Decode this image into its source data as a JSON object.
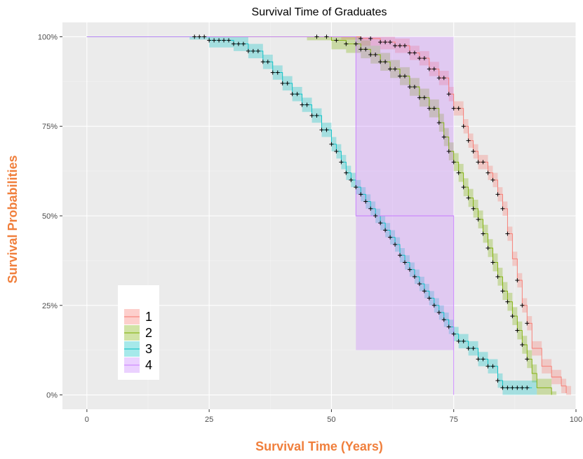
{
  "chart_data": {
    "type": "line",
    "subtype": "kaplan-meier survival curves with confidence bands and censor marks",
    "title": "Survival Time of Graduates",
    "xlabel": "Survival Time (Years)",
    "ylabel": "Survival Probabilities",
    "xlim": [
      -5,
      100
    ],
    "ylim": [
      -0.04,
      1.04
    ],
    "x_ticks": [
      0,
      25,
      50,
      75,
      100
    ],
    "x_tick_labels": [
      "0",
      "25",
      "50",
      "75",
      "100"
    ],
    "y_ticks": [
      0,
      0.25,
      0.5,
      0.75,
      1.0
    ],
    "y_tick_labels": [
      "0%",
      "25%",
      "50%",
      "75%",
      "100%"
    ],
    "grid": true,
    "legend_position": "bottom-left inside",
    "series": [
      {
        "name": "1",
        "color": "#F8766D",
        "band_color": "#F8766D",
        "points": [
          [
            0,
            1
          ],
          [
            52,
            1
          ],
          [
            56,
            0.995
          ],
          [
            60,
            0.985
          ],
          [
            63,
            0.975
          ],
          [
            66,
            0.955
          ],
          [
            68,
            0.94
          ],
          [
            70,
            0.91
          ],
          [
            72,
            0.885
          ],
          [
            74,
            0.84
          ],
          [
            75,
            0.8
          ],
          [
            77,
            0.75
          ],
          [
            78,
            0.71
          ],
          [
            79,
            0.68
          ],
          [
            80,
            0.65
          ],
          [
            82,
            0.62
          ],
          [
            83,
            0.6
          ],
          [
            84,
            0.56
          ],
          [
            85,
            0.52
          ],
          [
            86,
            0.45
          ],
          [
            87,
            0.38
          ],
          [
            88,
            0.32
          ],
          [
            89,
            0.25
          ],
          [
            90,
            0.2
          ],
          [
            91,
            0.13
          ],
          [
            93,
            0.08
          ],
          [
            95,
            0.05
          ],
          [
            97,
            0.025
          ],
          [
            98,
            0.005
          ]
        ],
        "ci_width": 0.02,
        "censor_x": [
          56,
          58,
          60,
          61,
          62,
          63,
          64,
          65,
          66,
          67,
          68,
          69,
          70,
          71,
          72,
          73,
          74,
          75,
          76,
          77,
          78,
          79,
          80,
          81,
          82,
          83,
          84,
          85,
          86,
          88,
          89,
          90
        ]
      },
      {
        "name": "2",
        "color": "#7CAE00",
        "band_color": "#7CAE00",
        "points": [
          [
            0,
            1
          ],
          [
            45,
            1
          ],
          [
            50,
            0.99
          ],
          [
            53,
            0.98
          ],
          [
            56,
            0.965
          ],
          [
            58,
            0.95
          ],
          [
            60,
            0.93
          ],
          [
            62,
            0.91
          ],
          [
            64,
            0.89
          ],
          [
            66,
            0.86
          ],
          [
            68,
            0.83
          ],
          [
            70,
            0.8
          ],
          [
            72,
            0.76
          ],
          [
            73,
            0.72
          ],
          [
            74,
            0.68
          ],
          [
            75,
            0.65
          ],
          [
            76,
            0.62
          ],
          [
            77,
            0.58
          ],
          [
            78,
            0.55
          ],
          [
            79,
            0.52
          ],
          [
            80,
            0.49
          ],
          [
            81,
            0.45
          ],
          [
            82,
            0.41
          ],
          [
            83,
            0.37
          ],
          [
            84,
            0.33
          ],
          [
            85,
            0.29
          ],
          [
            86,
            0.26
          ],
          [
            87,
            0.22
          ],
          [
            88,
            0.18
          ],
          [
            89,
            0.14
          ],
          [
            90,
            0.1
          ],
          [
            91,
            0.06
          ],
          [
            92,
            0.02
          ],
          [
            95,
            0
          ]
        ],
        "ci_width": 0.025,
        "censor_x": [
          47,
          49,
          51,
          53,
          55,
          56,
          57,
          58,
          59,
          60,
          61,
          62,
          63,
          64,
          65,
          66,
          67,
          68,
          69,
          70,
          71,
          72,
          73,
          74,
          75,
          76,
          77,
          78,
          79,
          80,
          81,
          82,
          83,
          84,
          85,
          86,
          87,
          88,
          89,
          90
        ]
      },
      {
        "name": "3",
        "color": "#00BFC4",
        "band_color": "#00BFC4",
        "points": [
          [
            0,
            1
          ],
          [
            21,
            1
          ],
          [
            25,
            0.99
          ],
          [
            30,
            0.98
          ],
          [
            33,
            0.96
          ],
          [
            36,
            0.93
          ],
          [
            38,
            0.9
          ],
          [
            40,
            0.87
          ],
          [
            42,
            0.84
          ],
          [
            44,
            0.81
          ],
          [
            46,
            0.78
          ],
          [
            48,
            0.74
          ],
          [
            50,
            0.7
          ],
          [
            51,
            0.68
          ],
          [
            52,
            0.65
          ],
          [
            53,
            0.62
          ],
          [
            54,
            0.6
          ],
          [
            55,
            0.58
          ],
          [
            56,
            0.56
          ],
          [
            57,
            0.54
          ],
          [
            58,
            0.52
          ],
          [
            59,
            0.5
          ],
          [
            60,
            0.48
          ],
          [
            61,
            0.46
          ],
          [
            62,
            0.44
          ],
          [
            63,
            0.42
          ],
          [
            64,
            0.39
          ],
          [
            65,
            0.37
          ],
          [
            66,
            0.35
          ],
          [
            67,
            0.33
          ],
          [
            68,
            0.31
          ],
          [
            69,
            0.29
          ],
          [
            70,
            0.27
          ],
          [
            71,
            0.25
          ],
          [
            72,
            0.23
          ],
          [
            73,
            0.21
          ],
          [
            74,
            0.19
          ],
          [
            75,
            0.17
          ],
          [
            76,
            0.15
          ],
          [
            78,
            0.13
          ],
          [
            80,
            0.1
          ],
          [
            82,
            0.08
          ],
          [
            84,
            0.04
          ],
          [
            85,
            0.02
          ],
          [
            91,
            0.02
          ]
        ],
        "ci_width": 0.02,
        "censor_x": [
          22,
          23,
          24,
          25,
          26,
          27,
          28,
          29,
          30,
          31,
          32,
          33,
          34,
          35,
          36,
          37,
          38,
          39,
          40,
          41,
          42,
          43,
          44,
          45,
          46,
          47,
          48,
          49,
          50,
          51,
          52,
          53,
          54,
          55,
          56,
          57,
          58,
          59,
          60,
          61,
          62,
          63,
          64,
          65,
          66,
          67,
          68,
          69,
          70,
          71,
          72,
          73,
          74,
          75,
          76,
          77,
          78,
          79,
          80,
          81,
          82,
          83,
          84,
          85,
          86,
          87,
          88,
          89,
          90
        ]
      },
      {
        "name": "4",
        "color": "#C77CFF",
        "band_color": "#C77CFF",
        "points": [
          [
            0,
            1
          ],
          [
            55,
            1
          ],
          [
            55,
            0.5
          ],
          [
            75,
            0.5
          ],
          [
            75,
            0
          ]
        ],
        "band": [
          [
            55,
            0.125,
            1
          ],
          [
            75,
            0.125,
            1
          ]
        ],
        "censor_x": []
      }
    ],
    "legend_entries": [
      "1",
      "2",
      "3",
      "4"
    ]
  },
  "colors": {
    "panel_bg": "#EBEBEB",
    "grid_major": "#FFFFFF",
    "grid_minor": "#F4F4F4",
    "axis_title": "#F07F3C",
    "tick_text": "#4D4D4D",
    "censor_mark": "#000000"
  }
}
